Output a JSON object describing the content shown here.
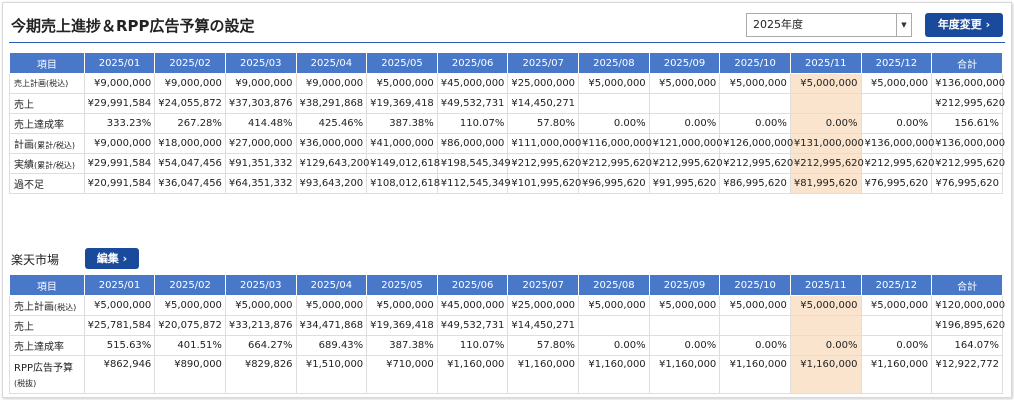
{
  "header": {
    "title": "今期売上進捗＆RPP広告予算の設定",
    "year_select": "2025年度",
    "button": "年度変更"
  },
  "table1": {
    "highlight_column": 10,
    "columns": [
      "項目",
      "2025/01",
      "2025/02",
      "2025/03",
      "2025/04",
      "2025/05",
      "2025/06",
      "2025/07",
      "2025/08",
      "2025/09",
      "2025/10",
      "2025/11",
      "2025/12",
      "合計"
    ],
    "rows": [
      {
        "note": "売上計画(税込)",
        "cells": [
          "¥9,000,000",
          "¥9,000,000",
          "¥9,000,000",
          "¥9,000,000",
          "¥5,000,000",
          "¥45,000,000",
          "¥25,000,000",
          "¥5,000,000",
          "¥5,000,000",
          "¥5,000,000",
          "¥5,000,000",
          "¥5,000,000",
          "¥136,000,000"
        ]
      },
      {
        "label": "売上",
        "cells": [
          "¥29,991,584",
          "¥24,055,872",
          "¥37,303,876",
          "¥38,291,868",
          "¥19,369,418",
          "¥49,532,731",
          "¥14,450,271",
          null,
          null,
          null,
          null,
          null,
          "¥212,995,620"
        ]
      },
      {
        "label": "売上達成率",
        "cells": [
          "333.23%",
          "267.28%",
          "414.48%",
          "425.46%",
          "387.38%",
          "110.07%",
          "57.80%",
          "0.00%",
          "0.00%",
          "0.00%",
          "0.00%",
          "0.00%",
          "156.61%"
        ]
      },
      {
        "label": "計画",
        "note": "(累計/税込)",
        "cells": [
          "¥9,000,000",
          "¥18,000,000",
          "¥27,000,000",
          "¥36,000,000",
          "¥41,000,000",
          "¥86,000,000",
          "¥111,000,000",
          "¥116,000,000",
          "¥121,000,000",
          "¥126,000,000",
          "¥131,000,000",
          "¥136,000,000",
          "¥136,000,000"
        ]
      },
      {
        "label": "実績",
        "note": "(累計/税込)",
        "cells": [
          "¥29,991,584",
          "¥54,047,456",
          "¥91,351,332",
          "¥129,643,200",
          "¥149,012,618",
          "¥198,545,349",
          "¥212,995,620",
          "¥212,995,620",
          "¥212,995,620",
          "¥212,995,620",
          "¥212,995,620",
          "¥212,995,620",
          "¥212,995,620"
        ]
      },
      {
        "label": "過不足",
        "cells": [
          "¥20,991,584",
          "¥36,047,456",
          "¥64,351,332",
          "¥93,643,200",
          "¥108,012,618",
          "¥112,545,349",
          "¥101,995,620",
          "¥96,995,620",
          "¥91,995,620",
          "¥86,995,620",
          "¥81,995,620",
          "¥76,995,620",
          "¥76,995,620"
        ]
      }
    ]
  },
  "section2": {
    "title": "楽天市場",
    "button": "編集"
  },
  "table2": {
    "highlight_column": 10,
    "columns": [
      "項目",
      "2025/01",
      "2025/02",
      "2025/03",
      "2025/04",
      "2025/05",
      "2025/06",
      "2025/07",
      "2025/08",
      "2025/09",
      "2025/10",
      "2025/11",
      "2025/12",
      "合計"
    ],
    "rows": [
      {
        "label": "売上計画",
        "note": "(税込)",
        "cells": [
          "¥5,000,000",
          "¥5,000,000",
          "¥5,000,000",
          "¥5,000,000",
          "¥5,000,000",
          "¥45,000,000",
          "¥25,000,000",
          "¥5,000,000",
          "¥5,000,000",
          "¥5,000,000",
          "¥5,000,000",
          "¥5,000,000",
          "¥120,000,000"
        ]
      },
      {
        "label": "売上",
        "cells": [
          "¥25,781,584",
          "¥20,075,872",
          "¥33,213,876",
          "¥34,471,868",
          "¥19,369,418",
          "¥49,532,731",
          "¥14,450,271",
          null,
          null,
          null,
          null,
          null,
          "¥196,895,620"
        ]
      },
      {
        "label": "売上達成率",
        "cells": [
          "515.63%",
          "401.51%",
          "664.27%",
          "689.43%",
          "387.38%",
          "110.07%",
          "57.80%",
          "0.00%",
          "0.00%",
          "0.00%",
          "0.00%",
          "0.00%",
          "164.07%"
        ]
      },
      {
        "label": "RPP広告予算",
        "note": "(税抜)",
        "block": true,
        "cells": [
          "¥862,946",
          "¥890,000",
          "¥829,826",
          "¥1,510,000",
          "¥710,000",
          "¥1,160,000",
          "¥1,160,000",
          "¥1,160,000",
          "¥1,160,000",
          "¥1,160,000",
          "¥1,160,000",
          "¥1,160,000",
          "¥12,922,772"
        ]
      }
    ]
  }
}
